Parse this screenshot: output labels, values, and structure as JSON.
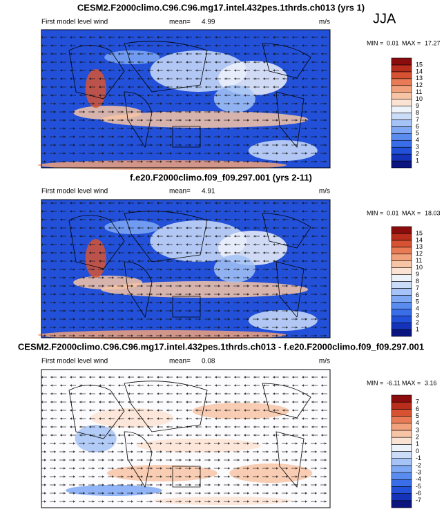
{
  "season": "JJA",
  "colors": [
    "#0b1580",
    "#1533b8",
    "#2250d8",
    "#3a6ee8",
    "#5a8cf0",
    "#7ea8f4",
    "#a5c3f6",
    "#cbdcf8",
    "#eef2f9",
    "#fbe3d4",
    "#f7c4a6",
    "#f1a17c",
    "#e87a55",
    "#d65233",
    "#b82d1c",
    "#8a0c0c"
  ],
  "panels": [
    {
      "title": "CESM2.F2000climo.C96.C96.mg17.intel.432pes.1thrds.ch013 (yrs 1)",
      "subtitle": "First model level wind",
      "mean_label": "mean=",
      "mean": 4.99,
      "unit": "m/s",
      "min_label": "MIN =",
      "min": 0.01,
      "max_label": "MAX =",
      "max": 17.27,
      "levels": [
        1,
        2,
        3,
        4,
        5,
        6,
        7,
        8,
        9,
        10,
        11,
        12,
        13,
        14,
        15
      ]
    },
    {
      "title": "f.e20.F2000climo.f09_f09.297.001 (yrs 2-11)",
      "subtitle": "First model level wind",
      "mean_label": "mean=",
      "mean": 4.91,
      "unit": "m/s",
      "min_label": "MIN =",
      "min": 0.01,
      "max_label": "MAX =",
      "max": 18.03,
      "levels": [
        1,
        2,
        3,
        4,
        5,
        6,
        7,
        8,
        9,
        10,
        11,
        12,
        13,
        14,
        15
      ]
    },
    {
      "title": "CESM2.F2000climo.C96.C96.mg17.intel.432pes.1thrds.ch013 - f.e20.F2000climo.f09_f09.297.001",
      "subtitle": "First model level wind",
      "mean_label": "mean=",
      "mean": 0.08,
      "unit": "m/s",
      "min_label": "MIN =",
      "min": -6.11,
      "max_label": "MAX =",
      "max": 3.16,
      "levels": [
        -7,
        -6,
        -5,
        -4,
        -3,
        -2,
        -1,
        0,
        1,
        2,
        3,
        4,
        5,
        6,
        7
      ]
    }
  ]
}
